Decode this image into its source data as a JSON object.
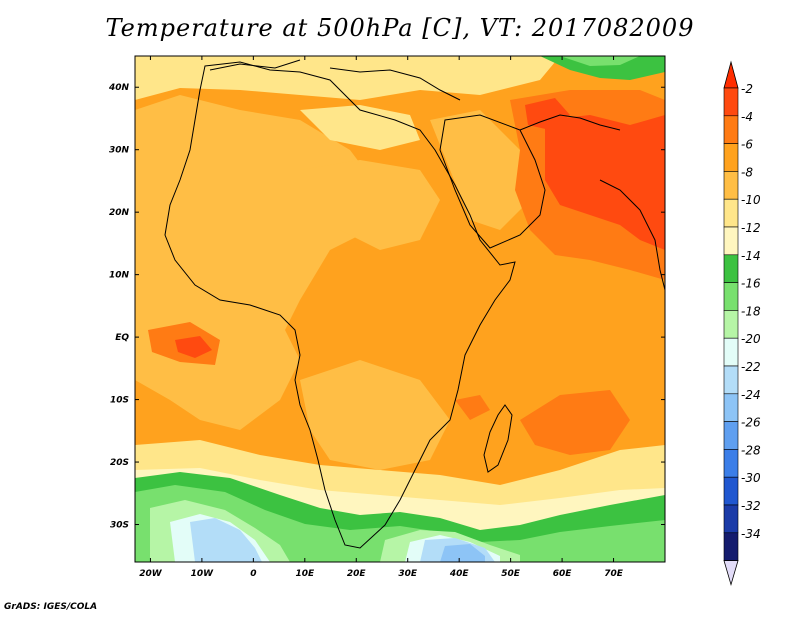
{
  "title": "Temperature at 500hPa [C], VT: 2017082009",
  "credit": "GrADS: IGES/COLA",
  "map": {
    "lon_range": [
      -23,
      80
    ],
    "lat_range": [
      -36,
      45
    ],
    "lon_ticks": [
      {
        "value": -20,
        "label": "20W"
      },
      {
        "value": -10,
        "label": "10W"
      },
      {
        "value": 0,
        "label": "0"
      },
      {
        "value": 10,
        "label": "10E"
      },
      {
        "value": 20,
        "label": "20E"
      },
      {
        "value": 30,
        "label": "30E"
      },
      {
        "value": 40,
        "label": "40E"
      },
      {
        "value": 50,
        "label": "50E"
      },
      {
        "value": 60,
        "label": "60E"
      },
      {
        "value": 70,
        "label": "70E"
      }
    ],
    "lat_ticks": [
      {
        "value": 40,
        "label": "40N"
      },
      {
        "value": 30,
        "label": "30N"
      },
      {
        "value": 20,
        "label": "20N"
      },
      {
        "value": 10,
        "label": "10N"
      },
      {
        "value": 0,
        "label": "EQ"
      },
      {
        "value": -10,
        "label": "10S"
      },
      {
        "value": -20,
        "label": "20S"
      },
      {
        "value": -30,
        "label": "30S"
      }
    ]
  },
  "colorbar": {
    "levels": [
      {
        "label": "-2",
        "color": "#ff4a10"
      },
      {
        "label": "-4",
        "color": "#ff7b14"
      },
      {
        "label": "-6",
        "color": "#ffa21e"
      },
      {
        "label": "-8",
        "color": "#ffbe45"
      },
      {
        "label": "-10",
        "color": "#ffe68a"
      },
      {
        "label": "-12",
        "color": "#fff6bf"
      },
      {
        "label": "-14",
        "color": "#3cc241"
      },
      {
        "label": "-16",
        "color": "#78e06e"
      },
      {
        "label": "-18",
        "color": "#b6f5a6"
      },
      {
        "label": "-20",
        "color": "#e3fdf8"
      },
      {
        "label": "-22",
        "color": "#b3ddf8"
      },
      {
        "label": "-24",
        "color": "#8dc4f6"
      },
      {
        "label": "-26",
        "color": "#5f9ff0"
      },
      {
        "label": "-28",
        "color": "#3b7ee8"
      },
      {
        "label": "-30",
        "color": "#2057d0"
      },
      {
        "label": "-32",
        "color": "#1b3ba8"
      },
      {
        "label": "-34",
        "color": "#141c6e"
      }
    ],
    "top_arrow_color": "#ff2d00",
    "bottom_arrow_color": "#e2dcf8"
  },
  "fill_colors": {
    "base": "#ffa21e",
    "light_orange": "#ffbe45",
    "dark_orange": "#ff7b14",
    "red": "#ff4a10",
    "yellow": "#ffe68a",
    "pale_yellow": "#fff6bf",
    "green": "#3cc241",
    "light_green": "#78e06e",
    "pale_green": "#b6f5a6",
    "pale_cyan": "#e3fdf8",
    "pale_blue": "#b3ddf8",
    "blue": "#8dc4f6",
    "land_outline": "#000000"
  }
}
